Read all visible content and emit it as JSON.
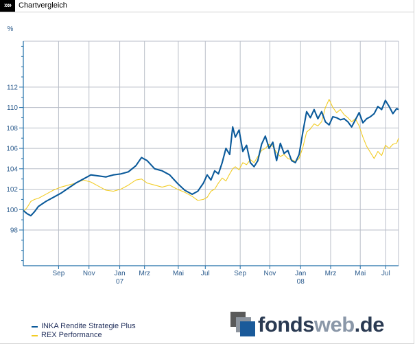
{
  "header": {
    "arrows": "»»",
    "title": "Chartvergleich"
  },
  "logo": {
    "part1": "fonds",
    "part2": "web",
    "part3": ".de"
  },
  "colors": {
    "series1": "#0b5a9a",
    "series2": "#f2cc24",
    "grid": "#b9bec8",
    "axis": "#1f6ea8",
    "label": "#2a5a8c"
  },
  "chart_data": {
    "type": "line",
    "title": "Chartvergleich",
    "ylabel": "%",
    "xlabel": "",
    "ylim": [
      94.5,
      116.5
    ],
    "yticks": [
      98,
      100,
      102,
      104,
      106,
      108,
      110,
      112
    ],
    "xlim": [
      0,
      100
    ],
    "xticks": [
      {
        "x": 9.4,
        "label": "Sep",
        "sub": ""
      },
      {
        "x": 17.5,
        "label": "Nov",
        "sub": ""
      },
      {
        "x": 25.7,
        "label": "Jan",
        "sub": "07"
      },
      {
        "x": 32.3,
        "label": "Mrz",
        "sub": ""
      },
      {
        "x": 41.3,
        "label": "Mai",
        "sub": ""
      },
      {
        "x": 48.5,
        "label": "Jul",
        "sub": ""
      },
      {
        "x": 57.8,
        "label": "Sep",
        "sub": ""
      },
      {
        "x": 65.7,
        "label": "Nov",
        "sub": ""
      },
      {
        "x": 73.9,
        "label": "Jan",
        "sub": "08"
      },
      {
        "x": 81.9,
        "label": "Mrz",
        "sub": ""
      },
      {
        "x": 89.8,
        "label": "Mai",
        "sub": ""
      },
      {
        "x": 96.6,
        "label": "Jul",
        "sub": ""
      }
    ],
    "series": [
      {
        "name": "INKA Rendite Strategie Plus",
        "x": [
          0,
          1,
          2,
          3,
          4,
          6,
          8,
          10,
          12,
          14,
          16,
          18,
          20,
          22,
          24,
          26,
          28,
          30,
          31.5,
          33,
          35,
          37,
          39,
          41,
          43,
          45,
          46.5,
          48,
          49,
          50,
          51,
          52,
          53,
          54,
          55,
          55.8,
          56.5,
          57.5,
          58.5,
          59.5,
          60.5,
          61.5,
          62.5,
          63.5,
          64.5,
          65.5,
          66.5,
          67.5,
          68.5,
          69.5,
          70.5,
          71.5,
          72.5,
          73.5,
          74.5,
          75.5,
          76.5,
          77.5,
          78.5,
          79.5,
          80.5,
          81.5,
          82.5,
          83.5,
          84.5,
          85.5,
          86.5,
          87.5,
          88.5,
          89.5,
          90.5,
          91.5,
          92.5,
          93.5,
          94.5,
          95.5,
          96.5,
          97.5,
          98.5,
          99.5,
          100
        ],
        "values": [
          99.9,
          99.6,
          99.4,
          99.8,
          100.3,
          100.8,
          101.2,
          101.6,
          102.1,
          102.6,
          103.0,
          103.4,
          103.3,
          103.2,
          103.4,
          103.5,
          103.7,
          104.3,
          105.1,
          104.8,
          104.0,
          103.8,
          103.4,
          102.6,
          101.9,
          101.5,
          101.8,
          102.6,
          103.4,
          102.9,
          103.8,
          103.5,
          104.6,
          106.0,
          105.4,
          108.1,
          107.1,
          107.8,
          105.7,
          106.3,
          104.6,
          104.2,
          104.8,
          106.4,
          107.2,
          106.0,
          106.6,
          104.8,
          106.5,
          105.5,
          105.8,
          104.8,
          104.6,
          105.4,
          107.6,
          109.6,
          109.0,
          109.8,
          108.9,
          109.6,
          108.6,
          108.3,
          109.1,
          109.0,
          108.8,
          108.9,
          108.6,
          108.1,
          108.8,
          109.5,
          108.5,
          108.9,
          109.1,
          109.4,
          110.1,
          109.8,
          110.7,
          110.1,
          109.4,
          109.9,
          109.8
        ]
      },
      {
        "name": "REX Performance",
        "x": [
          0,
          1,
          2,
          3,
          4,
          6,
          8,
          10,
          12,
          14,
          16,
          18,
          20,
          22,
          24,
          26,
          28,
          30,
          31.5,
          33,
          35,
          37,
          39,
          41,
          43,
          45,
          46.5,
          48,
          49,
          50,
          51,
          52,
          53,
          54,
          55,
          55.8,
          56.5,
          57.5,
          58.5,
          59.5,
          60.5,
          61.5,
          62.5,
          63.5,
          64.5,
          65.5,
          66.5,
          67.5,
          68.5,
          69.5,
          70.5,
          71.5,
          72.5,
          73.5,
          74.5,
          75.5,
          76.5,
          77.5,
          78.5,
          79.5,
          80.5,
          81.5,
          82.5,
          83.5,
          84.5,
          85.5,
          86.5,
          87.5,
          88.5,
          89.5,
          90.5,
          91.5,
          92.5,
          93.5,
          94.5,
          95.5,
          96.5,
          97.5,
          98.5,
          99.5,
          100
        ],
        "values": [
          99.8,
          100.2,
          100.8,
          101.0,
          101.1,
          101.5,
          101.9,
          102.2,
          102.4,
          102.6,
          102.9,
          102.7,
          102.3,
          101.9,
          101.8,
          102.0,
          102.4,
          102.9,
          103.0,
          102.6,
          102.4,
          102.2,
          102.4,
          102.0,
          101.7,
          101.3,
          100.9,
          101.0,
          101.2,
          101.8,
          102.0,
          102.6,
          103.1,
          102.8,
          103.5,
          104.0,
          104.2,
          103.9,
          104.6,
          104.4,
          104.9,
          104.6,
          105.2,
          105.8,
          106.0,
          106.4,
          106.2,
          105.6,
          105.2,
          105.4,
          105.0,
          104.9,
          104.7,
          105.0,
          106.1,
          107.6,
          107.9,
          108.4,
          108.2,
          108.6,
          110.0,
          110.8,
          110.0,
          109.5,
          109.8,
          109.3,
          109.0,
          108.6,
          108.9,
          108.2,
          107.1,
          106.2,
          105.6,
          105.0,
          105.7,
          105.3,
          106.3,
          106.0,
          106.4,
          106.5,
          107.0
        ]
      }
    ]
  }
}
